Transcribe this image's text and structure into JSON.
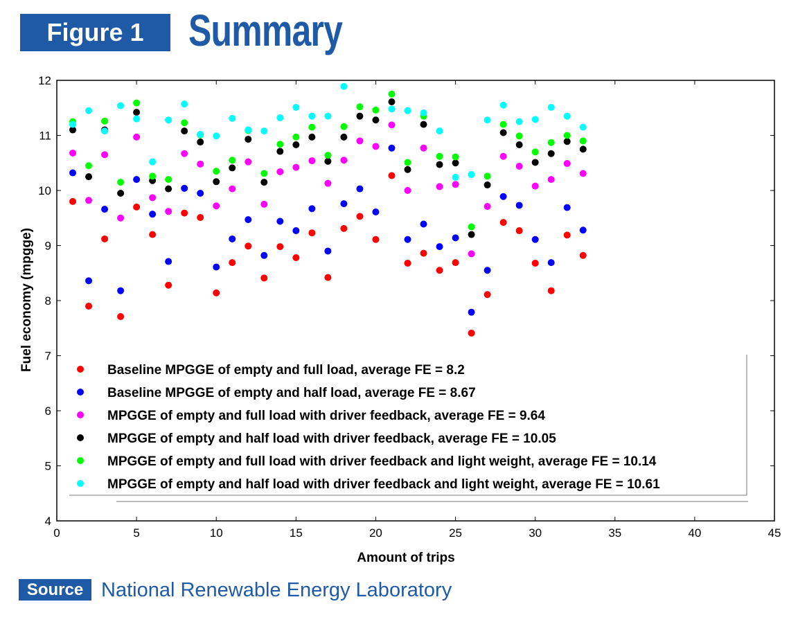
{
  "header": {
    "badge": "Figure 1",
    "title": "Summary"
  },
  "footer": {
    "badge": "Source",
    "text": "National Renewable Energy Laboratory"
  },
  "chart_data": {
    "type": "scatter",
    "title": "",
    "xlabel": "Amount of trips",
    "ylabel": "Fuel economy (mpgge)",
    "xlim": [
      0,
      45
    ],
    "ylim": [
      4,
      12
    ],
    "xticks": [
      0,
      5,
      10,
      15,
      20,
      25,
      30,
      35,
      40,
      45
    ],
    "yticks": [
      4,
      5,
      6,
      7,
      8,
      9,
      10,
      11,
      12
    ],
    "grid": false,
    "legend_position": "bottom-left",
    "x": [
      1,
      2,
      3,
      4,
      5,
      6,
      7,
      8,
      9,
      10,
      11,
      12,
      13,
      14,
      15,
      16,
      17,
      18,
      19,
      20,
      21,
      22,
      23,
      24,
      25,
      26,
      27,
      28,
      29,
      30,
      31,
      32,
      33
    ],
    "series": [
      {
        "name": "Baseline MPGGE of empty and full load, average FE = 8.2",
        "color": "#ff0000",
        "values": [
          9.8,
          7.9,
          9.12,
          7.71,
          9.7,
          9.2,
          8.28,
          9.59,
          9.51,
          8.14,
          8.69,
          8.99,
          8.41,
          8.98,
          8.78,
          9.23,
          8.42,
          9.31,
          9.53,
          9.11,
          10.27,
          8.68,
          8.86,
          8.55,
          8.69,
          7.41,
          8.11,
          9.42,
          9.27,
          8.68,
          8.18,
          9.19,
          8.82
        ]
      },
      {
        "name": "Baseline MPGGE of empty and half load, average FE = 8.67",
        "color": "#0000ff",
        "values": [
          10.32,
          8.36,
          9.66,
          8.18,
          10.2,
          9.57,
          8.71,
          10.04,
          9.95,
          8.61,
          9.12,
          9.47,
          8.82,
          9.44,
          9.27,
          9.67,
          8.9,
          9.76,
          10.03,
          9.61,
          10.77,
          9.11,
          9.39,
          8.98,
          9.14,
          7.79,
          8.55,
          9.89,
          9.73,
          9.11,
          8.69,
          9.69,
          9.28
        ]
      },
      {
        "name": "MPGGE of empty and full load with driver feedback, average FE = 9.64",
        "color": "#ff00ff",
        "values": [
          10.68,
          9.82,
          10.65,
          9.5,
          10.97,
          9.87,
          9.62,
          10.67,
          10.48,
          9.72,
          10.03,
          10.52,
          9.75,
          10.34,
          10.42,
          10.54,
          10.13,
          10.55,
          10.9,
          10.8,
          11.19,
          10.0,
          10.77,
          10.07,
          10.11,
          8.85,
          9.71,
          10.62,
          10.44,
          10.08,
          10.2,
          10.49,
          10.31
        ]
      },
      {
        "name": "MPGGE of empty and half load with driver feedback, average FE = 10.05",
        "color": "#000000",
        "values": [
          11.1,
          10.25,
          11.1,
          9.95,
          11.42,
          10.18,
          10.03,
          11.08,
          10.88,
          10.16,
          10.41,
          10.93,
          10.15,
          10.71,
          10.83,
          10.97,
          10.53,
          10.97,
          11.35,
          11.28,
          11.61,
          10.38,
          11.2,
          10.47,
          10.5,
          9.2,
          10.1,
          11.05,
          10.83,
          10.51,
          10.67,
          10.89,
          10.75
        ]
      },
      {
        "name": "MPGGE of empty and full load with driver feedback and light weight, average FE = 10.14",
        "color": "#00ff00",
        "values": [
          11.25,
          10.45,
          11.26,
          10.15,
          11.59,
          10.26,
          10.2,
          11.23,
          11.01,
          10.35,
          10.55,
          11.09,
          10.31,
          10.84,
          10.97,
          11.15,
          10.64,
          11.16,
          11.52,
          11.46,
          11.75,
          10.51,
          11.35,
          10.62,
          10.61,
          9.34,
          10.26,
          11.2,
          10.99,
          10.7,
          10.87,
          11.0,
          10.9
        ]
      },
      {
        "name": "MPGGE of empty and half load with driver feedback and light weight, average FE = 10.61",
        "color": "#00ffff",
        "values": [
          11.2,
          11.45,
          11.08,
          11.54,
          11.3,
          10.52,
          11.28,
          11.57,
          11.02,
          10.99,
          11.31,
          11.1,
          11.08,
          11.32,
          11.51,
          11.35,
          11.35,
          11.89,
          null,
          null,
          11.48,
          11.45,
          11.41,
          11.08,
          10.24,
          10.29,
          11.28,
          11.55,
          11.25,
          11.29,
          11.51,
          11.35,
          11.15
        ]
      }
    ]
  }
}
